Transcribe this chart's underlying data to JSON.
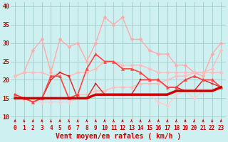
{
  "background_color": "#cff0f0",
  "grid_color": "#aad4d4",
  "xlabel": "Vent moyen/en rafales ( km/h )",
  "x_ticks": [
    0,
    1,
    2,
    3,
    4,
    5,
    6,
    7,
    8,
    9,
    10,
    11,
    12,
    13,
    14,
    15,
    16,
    17,
    18,
    19,
    20,
    21,
    22,
    23
  ],
  "ylim": [
    8,
    41
  ],
  "yticks": [
    10,
    15,
    20,
    25,
    30,
    35,
    40
  ],
  "series": [
    {
      "y": [
        21,
        22,
        28,
        31,
        22,
        31,
        29,
        30,
        25,
        30,
        37,
        35,
        37,
        31,
        31,
        28,
        27,
        27,
        24,
        24,
        22,
        21,
        27,
        30
      ],
      "color": "#ffaaaa",
      "marker": "D",
      "markersize": 2.5,
      "linewidth": 1.0,
      "zorder": 2
    },
    {
      "y": [
        21,
        22,
        22,
        22,
        21,
        22,
        21,
        22,
        22,
        23,
        25,
        25,
        24,
        24,
        24,
        23,
        22,
        22,
        22,
        22,
        22,
        22,
        22,
        22
      ],
      "color": "#ffbbbb",
      "marker": "D",
      "markersize": 2.5,
      "linewidth": 1.0,
      "zorder": 2
    },
    {
      "y": [
        15,
        15,
        15,
        15,
        15,
        15,
        15,
        16,
        16,
        17,
        17,
        18,
        18,
        18,
        19,
        19,
        19,
        20,
        21,
        21,
        22,
        22,
        23,
        28
      ],
      "color": "#ffbbbb",
      "marker": "D",
      "markersize": 2.5,
      "linewidth": 1.0,
      "zorder": 2
    },
    {
      "y": [
        16,
        15,
        14,
        14,
        14,
        14,
        14,
        15,
        15,
        16,
        16,
        16,
        16,
        16,
        16,
        16,
        14,
        13,
        16,
        17,
        15,
        17,
        17,
        18
      ],
      "color": "#ffcccc",
      "marker": "D",
      "markersize": 2.5,
      "linewidth": 1.0,
      "zorder": 2
    },
    {
      "y": [
        15,
        15,
        15,
        15,
        15,
        15,
        15,
        15,
        15,
        16,
        16,
        16,
        16,
        16,
        16,
        16,
        16,
        16,
        17,
        17,
        17,
        17,
        17,
        18
      ],
      "color": "#cc0000",
      "marker": null,
      "markersize": 0,
      "linewidth": 2.5,
      "zorder": 5
    },
    {
      "y": [
        16,
        15,
        14,
        15,
        21,
        21,
        15,
        16,
        23,
        27,
        25,
        25,
        23,
        23,
        22,
        20,
        20,
        18,
        18,
        20,
        21,
        20,
        20,
        18
      ],
      "color": "#ff4444",
      "marker": "^",
      "markersize": 3,
      "linewidth": 1.2,
      "zorder": 4
    },
    {
      "y": [
        16,
        15,
        14,
        15,
        20,
        22,
        21,
        15,
        15,
        19,
        16,
        16,
        16,
        16,
        20,
        20,
        20,
        18,
        18,
        17,
        17,
        20,
        19,
        18
      ],
      "color": "#dd2222",
      "marker": "s",
      "markersize": 2,
      "linewidth": 1.0,
      "zorder": 3
    }
  ],
  "arrow_color": "#cc0000",
  "xlabel_color": "#cc0000",
  "tick_color": "#cc0000",
  "tick_fontsize": 5.5,
  "label_fontsize": 7
}
